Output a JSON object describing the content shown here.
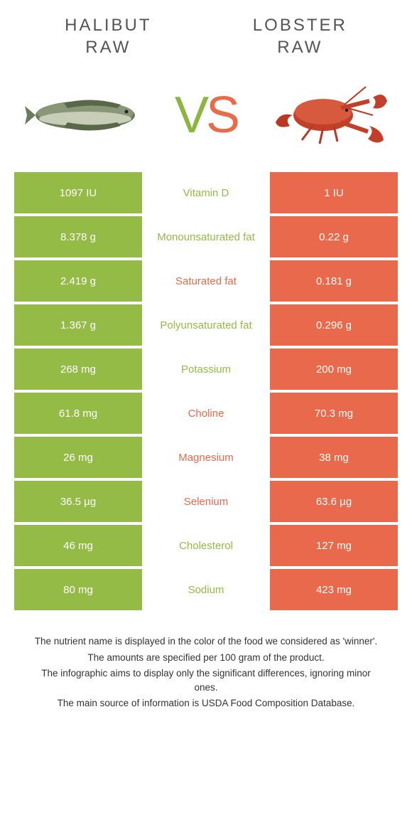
{
  "colors": {
    "green": "#94bb46",
    "orange": "#e8694b",
    "text": "#333333"
  },
  "left": {
    "title": "HALIBUT\nRAW"
  },
  "right": {
    "title": "LOBSTER\nRAW"
  },
  "vs": {
    "v": "V",
    "s": "S"
  },
  "rows": [
    {
      "left": "1097 IU",
      "mid": "Vitamin D",
      "right": "1 IU",
      "winner": "left"
    },
    {
      "left": "8.378 g",
      "mid": "Monounsaturated fat",
      "right": "0.22 g",
      "winner": "left"
    },
    {
      "left": "2.419 g",
      "mid": "Saturated fat",
      "right": "0.181 g",
      "winner": "right"
    },
    {
      "left": "1.367 g",
      "mid": "Polyunsaturated fat",
      "right": "0.296 g",
      "winner": "left"
    },
    {
      "left": "268 mg",
      "mid": "Potassium",
      "right": "200 mg",
      "winner": "left"
    },
    {
      "left": "61.8 mg",
      "mid": "Choline",
      "right": "70.3 mg",
      "winner": "right"
    },
    {
      "left": "26 mg",
      "mid": "Magnesium",
      "right": "38 mg",
      "winner": "right"
    },
    {
      "left": "36.5 µg",
      "mid": "Selenium",
      "right": "63.6 µg",
      "winner": "right"
    },
    {
      "left": "46 mg",
      "mid": "Cholesterol",
      "right": "127 mg",
      "winner": "left"
    },
    {
      "left": "80 mg",
      "mid": "Sodium",
      "right": "423 mg",
      "winner": "left"
    }
  ],
  "footer": {
    "l1": "The nutrient name is displayed in the color of the food we considered as 'winner'.",
    "l2": "The amounts are specified per 100 gram of the product.",
    "l3": "The infographic aims to display only the significant differences, ignoring minor ones.",
    "l4": "The main source of information is USDA Food Composition Database."
  }
}
